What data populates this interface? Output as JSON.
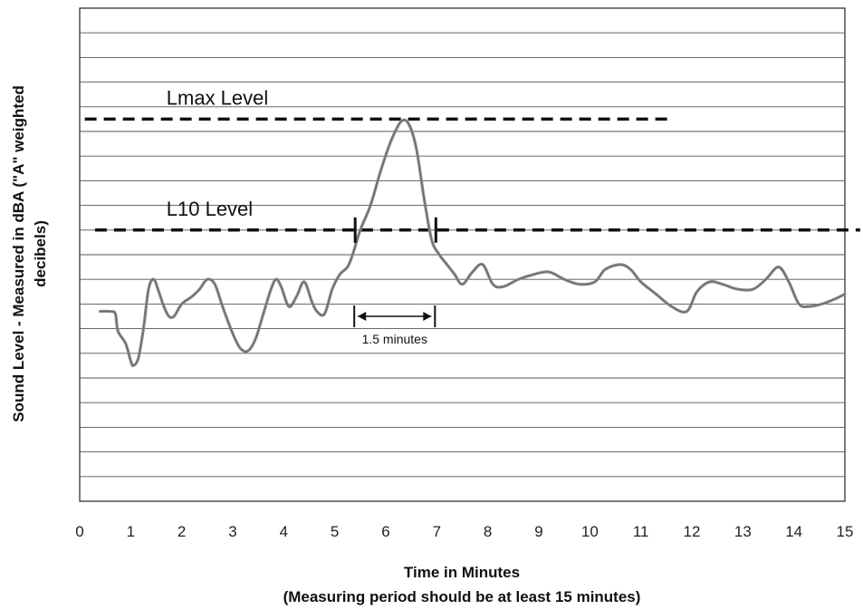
{
  "chart_data": {
    "type": "line",
    "title": "",
    "xlabel": "Time in Minutes",
    "xlabel_note": "(Measuring period should be at least 15 minutes)",
    "ylabel": "Sound Level - Measured in dBA (\"A\" weighted decibels)",
    "ylabel_lines": [
      "Sound Level - Measured in dBA (\"A\" weighted",
      "decibels)"
    ],
    "xlim": [
      0,
      15
    ],
    "ylim": [
      0,
      20
    ],
    "x_ticks": [
      0,
      1,
      2,
      3,
      4,
      5,
      6,
      7,
      8,
      9,
      10,
      11,
      12,
      13,
      14,
      15
    ],
    "y_ticks": [],
    "grid": "horizontal",
    "y_gridlines": 20,
    "series": [
      {
        "values": [
          [
            0.4,
            7.7
          ],
          [
            0.6,
            7.7
          ],
          [
            0.7,
            7.6
          ],
          [
            0.75,
            6.9
          ],
          [
            0.9,
            6.4
          ],
          [
            1.0,
            5.7
          ],
          [
            1.05,
            5.5
          ],
          [
            1.15,
            5.8
          ],
          [
            1.25,
            7.0
          ],
          [
            1.35,
            8.6
          ],
          [
            1.45,
            9.0
          ],
          [
            1.55,
            8.5
          ],
          [
            1.65,
            7.9
          ],
          [
            1.75,
            7.5
          ],
          [
            1.85,
            7.5
          ],
          [
            2.0,
            8.0
          ],
          [
            2.2,
            8.3
          ],
          [
            2.35,
            8.6
          ],
          [
            2.5,
            9.0
          ],
          [
            2.65,
            8.8
          ],
          [
            2.8,
            7.9
          ],
          [
            3.0,
            6.8
          ],
          [
            3.15,
            6.2
          ],
          [
            3.3,
            6.1
          ],
          [
            3.45,
            6.6
          ],
          [
            3.6,
            7.6
          ],
          [
            3.75,
            8.6
          ],
          [
            3.85,
            9.0
          ],
          [
            3.95,
            8.7
          ],
          [
            4.1,
            7.9
          ],
          [
            4.25,
            8.3
          ],
          [
            4.4,
            8.9
          ],
          [
            4.55,
            8.1
          ],
          [
            4.65,
            7.7
          ],
          [
            4.8,
            7.6
          ],
          [
            4.95,
            8.6
          ],
          [
            5.1,
            9.2
          ],
          [
            5.25,
            9.5
          ],
          [
            5.35,
            10.0
          ],
          [
            5.5,
            11.0
          ],
          [
            5.7,
            12.0
          ],
          [
            5.9,
            13.4
          ],
          [
            6.1,
            14.6
          ],
          [
            6.3,
            15.4
          ],
          [
            6.45,
            15.3
          ],
          [
            6.6,
            14.3
          ],
          [
            6.75,
            12.3
          ],
          [
            6.9,
            10.6
          ],
          [
            7.05,
            10.0
          ],
          [
            7.2,
            9.6
          ],
          [
            7.35,
            9.2
          ],
          [
            7.5,
            8.8
          ],
          [
            7.7,
            9.3
          ],
          [
            7.9,
            9.6
          ],
          [
            8.1,
            8.8
          ],
          [
            8.3,
            8.7
          ],
          [
            8.6,
            9.0
          ],
          [
            8.9,
            9.2
          ],
          [
            9.2,
            9.3
          ],
          [
            9.5,
            9.0
          ],
          [
            9.8,
            8.8
          ],
          [
            10.1,
            8.9
          ],
          [
            10.3,
            9.4
          ],
          [
            10.6,
            9.6
          ],
          [
            10.8,
            9.4
          ],
          [
            11.0,
            8.9
          ],
          [
            11.3,
            8.4
          ],
          [
            11.6,
            7.9
          ],
          [
            11.9,
            7.7
          ],
          [
            12.1,
            8.5
          ],
          [
            12.35,
            8.9
          ],
          [
            12.6,
            8.8
          ],
          [
            12.9,
            8.6
          ],
          [
            13.2,
            8.6
          ],
          [
            13.45,
            9.0
          ],
          [
            13.7,
            9.5
          ],
          [
            13.9,
            8.9
          ],
          [
            14.1,
            8.0
          ],
          [
            14.3,
            7.9
          ],
          [
            14.55,
            8.0
          ],
          [
            14.8,
            8.2
          ],
          [
            15.0,
            8.4
          ]
        ]
      }
    ],
    "reference_lines": [
      {
        "name": "Lmax Level",
        "label": "Lmax Level",
        "y": 15.5,
        "x_start": 0.1,
        "x_end": 11.6
      },
      {
        "name": "L10 Level",
        "label": "L10 Level",
        "y": 11.0,
        "x_start": 0.3,
        "x_end": 15.3
      }
    ],
    "annotation": {
      "label": "1.5 minutes",
      "x_start": 5.4,
      "x_end": 7.0
    }
  }
}
